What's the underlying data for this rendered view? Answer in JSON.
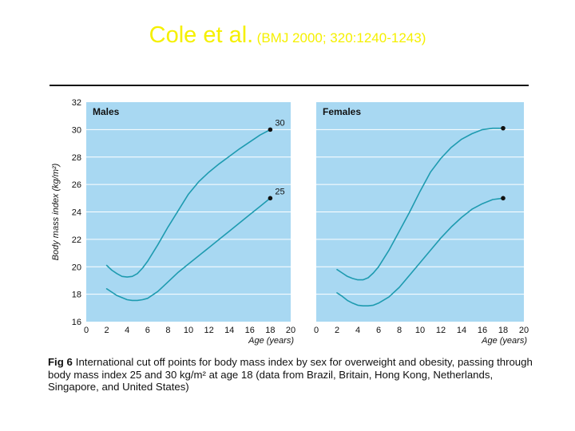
{
  "slide": {
    "title_main": "Cole et al.",
    "title_ref": "(BMJ 2000; 320:1240-1243)",
    "title_color": "#f5f000"
  },
  "chart_data": {
    "type": "line",
    "ylabel": "Body mass index (kg/m²)",
    "xlabel": "Age (years)",
    "xlim": [
      0,
      20
    ],
    "ylim": [
      16,
      32
    ],
    "x_ticks": [
      0,
      2,
      4,
      6,
      8,
      10,
      12,
      14,
      16,
      18,
      20
    ],
    "y_ticks": [
      16,
      18,
      20,
      22,
      24,
      26,
      28,
      30,
      32
    ],
    "grid": true,
    "panel_color": "#a8d8f2",
    "line_color": "#1e9bb0",
    "panels": [
      {
        "title": "Males",
        "series": [
          {
            "name": "30",
            "x": [
              2,
              2.5,
              3,
              3.5,
              4,
              4.5,
              5,
              5.5,
              6,
              7,
              8,
              9,
              10,
              11,
              12,
              13,
              14,
              15,
              16,
              17,
              18
            ],
            "y": [
              20.1,
              19.75,
              19.5,
              19.3,
              19.25,
              19.3,
              19.5,
              19.9,
              20.4,
              21.6,
              22.9,
              24.1,
              25.3,
              26.2,
              26.9,
              27.5,
              28.05,
              28.6,
              29.1,
              29.6,
              30.0
            ]
          },
          {
            "name": "25",
            "x": [
              2,
              2.5,
              3,
              3.5,
              4,
              4.5,
              5,
              5.5,
              6,
              7,
              8,
              9,
              10,
              11,
              12,
              13,
              14,
              15,
              16,
              17,
              18
            ],
            "y": [
              18.4,
              18.15,
              17.9,
              17.75,
              17.6,
              17.55,
              17.55,
              17.6,
              17.7,
              18.2,
              18.9,
              19.6,
              20.2,
              20.8,
              21.4,
              22.0,
              22.6,
              23.2,
              23.8,
              24.4,
              25.0
            ]
          }
        ]
      },
      {
        "title": "Females",
        "series": [
          {
            "name": "30",
            "x": [
              2,
              2.5,
              3,
              3.5,
              4,
              4.5,
              5,
              5.5,
              6,
              7,
              8,
              9,
              10,
              11,
              12,
              13,
              14,
              15,
              16,
              17,
              18
            ],
            "y": [
              19.8,
              19.55,
              19.3,
              19.15,
              19.05,
              19.05,
              19.2,
              19.55,
              20.0,
              21.2,
              22.6,
              24.0,
              25.5,
              26.9,
              27.9,
              28.7,
              29.3,
              29.7,
              30.0,
              30.1,
              30.1
            ]
          },
          {
            "name": "25",
            "x": [
              2,
              2.5,
              3,
              3.5,
              4,
              4.5,
              5,
              5.5,
              6,
              7,
              8,
              9,
              10,
              11,
              12,
              13,
              14,
              15,
              16,
              17,
              18
            ],
            "y": [
              18.1,
              17.85,
              17.55,
              17.35,
              17.2,
              17.15,
              17.15,
              17.2,
              17.35,
              17.8,
              18.5,
              19.4,
              20.3,
              21.2,
              22.1,
              22.9,
              23.6,
              24.2,
              24.6,
              24.9,
              25.0
            ]
          }
        ]
      }
    ]
  },
  "caption": {
    "label": "Fig 6",
    "text": "International cut off points for body mass index by sex for overweight and obesity, passing through body mass index 25 and 30 kg/m² at age 18 (data from Brazil, Britain, Hong Kong, Netherlands, Singapore, and United States)"
  }
}
